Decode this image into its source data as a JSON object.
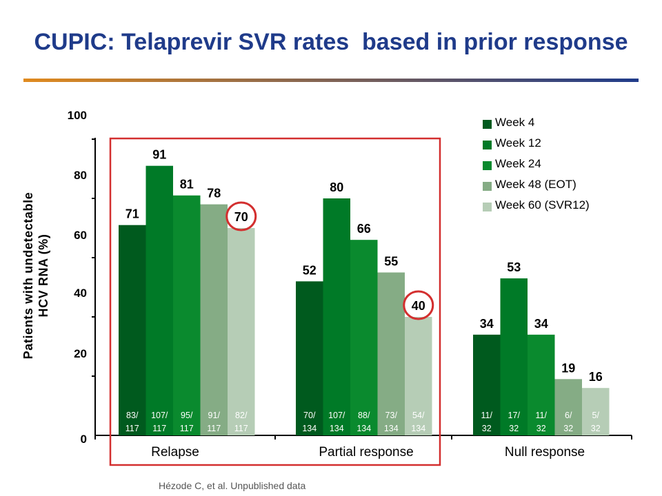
{
  "title": "CUPIC: Telaprevir SVR rates  based in prior response",
  "source": "Hézode C, et al. Unpublished data",
  "colors": {
    "title": "#1f3b8a",
    "highlight_box": "#d32f2f",
    "title_rule_start": "#e08a1e",
    "title_rule_end": "#1f3b8a"
  },
  "chart_data": {
    "type": "bar",
    "ylabel": "Patients with undetectable HCV RNA (%)",
    "ylabel_lines": [
      "Patients with undetectable",
      "HCV RNA (%)"
    ],
    "ylim": [
      0,
      100
    ],
    "yticks": [
      "0",
      "20",
      "40",
      "60",
      "80",
      "100"
    ],
    "categories": [
      "Relapse",
      "Partial response",
      "Null response"
    ],
    "series": [
      {
        "name": "Week 4",
        "color": "#005a1e",
        "values": [
          71,
          52,
          34
        ],
        "fractions": [
          [
            "83/",
            "117"
          ],
          [
            "70/",
            "134"
          ],
          [
            "11/",
            "32"
          ]
        ]
      },
      {
        "name": "Week 12",
        "color": "#007a27",
        "values": [
          91,
          80,
          53
        ],
        "fractions": [
          [
            "107/",
            "117"
          ],
          [
            "107/",
            "134"
          ],
          [
            "17/",
            "32"
          ]
        ]
      },
      {
        "name": "Week 24",
        "color": "#0a8a2e",
        "values": [
          81,
          66,
          34
        ],
        "fractions": [
          [
            "95/",
            "117"
          ],
          [
            "88/",
            "134"
          ],
          [
            "11/",
            "32"
          ]
        ]
      },
      {
        "name": "Week 48 (EOT)",
        "color": "#85ac85",
        "values": [
          78,
          55,
          19
        ],
        "fractions": [
          [
            "91/",
            "117"
          ],
          [
            "73/",
            "134"
          ],
          [
            "6/",
            "32"
          ]
        ]
      },
      {
        "name": "Week 60 (SVR12)",
        "color": "#b6cdb6",
        "values": [
          70,
          40,
          16
        ],
        "fractions": [
          [
            "82/",
            "117"
          ],
          [
            "54/",
            "134"
          ],
          [
            "5/",
            "32"
          ]
        ]
      }
    ],
    "highlighted": [
      {
        "series": 4,
        "category": 0
      },
      {
        "series": 4,
        "category": 1
      }
    ],
    "highlight_box_categories": [
      "Relapse",
      "Partial response"
    ],
    "legend_position": "top-right",
    "grid": false
  }
}
